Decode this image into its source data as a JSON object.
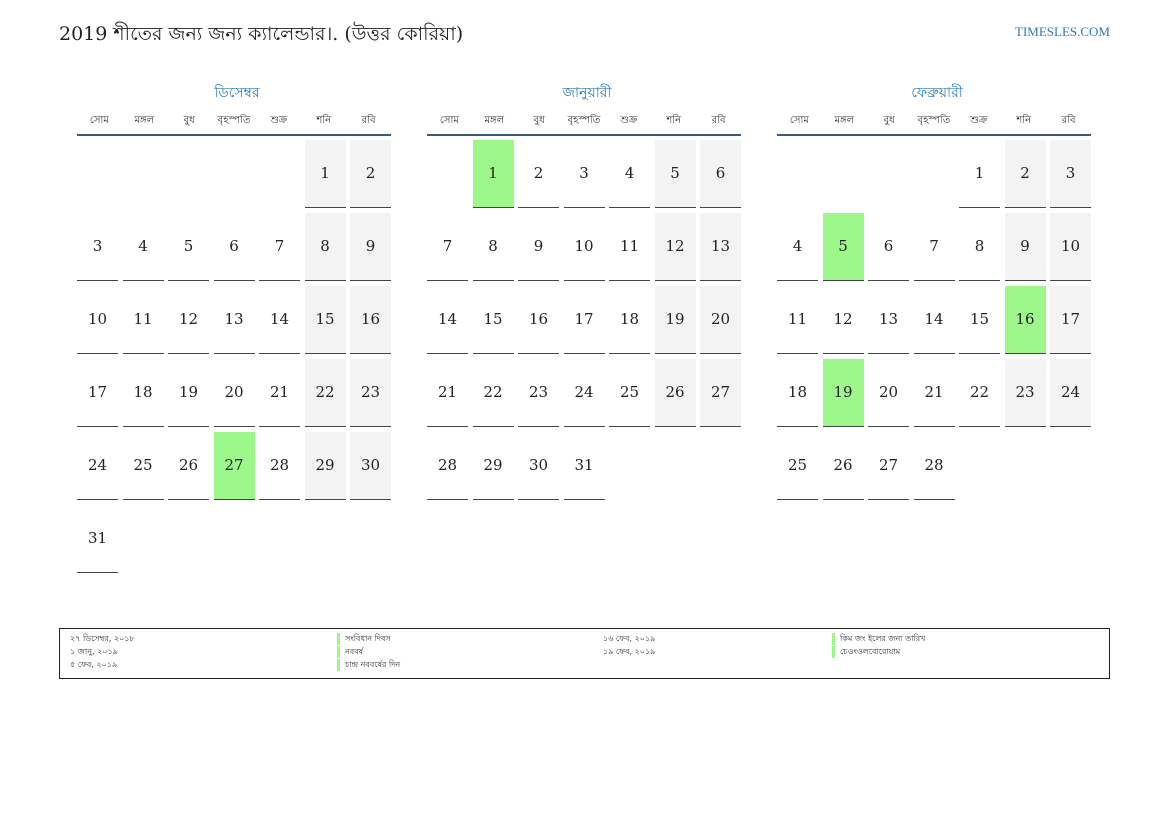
{
  "header": {
    "title": "2019 শীতের জন্য জন্য ক্যালেন্ডার।. (উত্তর কোরিয়া)",
    "site": "TIMESLES.COM"
  },
  "colors": {
    "accent": "#2b7bb9",
    "holiday": "#9df78a",
    "weekend": "#f3f3f3"
  },
  "weekdays": [
    "সোম",
    "মঙ্গল",
    "বুধ",
    "বৃহস্পতি",
    "শুক্র",
    "শনি",
    "রবি"
  ],
  "months": [
    {
      "name": "ডিসেম্বর",
      "start_offset": 5,
      "days": 31,
      "holidays": [
        27
      ]
    },
    {
      "name": "জানুয়ারী",
      "start_offset": 1,
      "days": 31,
      "holidays": [
        1
      ]
    },
    {
      "name": "ফেব্রুয়ারী",
      "start_offset": 4,
      "days": 28,
      "holidays": [
        5,
        16,
        19
      ]
    }
  ],
  "legend": [
    {
      "date": "২৭ ডিসেম্বর, ২০১৮",
      "name": "সংবিধান দিবস"
    },
    {
      "date": "১ জানু, ২০১৯",
      "name": "নববর্ষ"
    },
    {
      "date": "৫ ফেব, ২০১৯",
      "name": "চান্দ্র নববর্ষের দিন"
    },
    {
      "date": "১৬ ফেব, ২০১৯",
      "name": "কিম জং ইলের জন্য তারিখ"
    },
    {
      "date": "১৯ ফেব, ২০১৯",
      "name": "চেওংওলবোরোয়াম"
    }
  ]
}
